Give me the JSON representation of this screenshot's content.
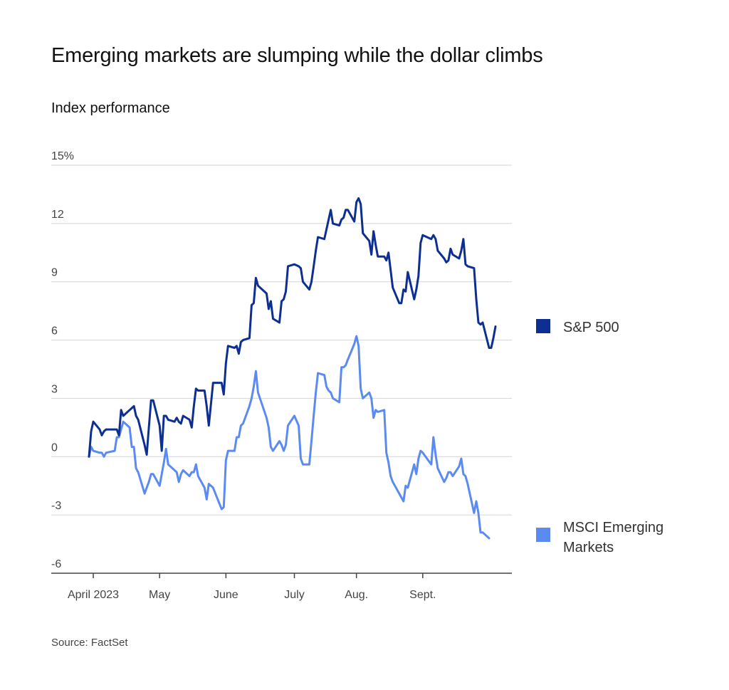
{
  "title": "Emerging markets are slumping while the dollar climbs",
  "subtitle": "Index performance",
  "source": "Source: FactSet",
  "colors": {
    "sp500": "#0d2f91",
    "msci": "#5b8af0",
    "grid": "#d4d4d4",
    "axis": "#444444"
  },
  "chart_data": {
    "type": "line",
    "title": "Emerging markets are slumping while the dollar climbs",
    "subtitle": "Index performance",
    "xlabel": "",
    "ylabel": "",
    "ylim": [
      -6,
      15
    ],
    "y_ticks": [
      15,
      12,
      9,
      6,
      3,
      0,
      -3,
      -6
    ],
    "y_tick_labels": [
      "15%",
      "12",
      "9",
      "6",
      "3",
      "0",
      "-3",
      "-6"
    ],
    "x_ticks": [
      {
        "label": "April 2023",
        "date": "2023-03-31"
      },
      {
        "label": "May",
        "date": "2023-05-01"
      },
      {
        "label": "June",
        "date": "2023-06-01"
      },
      {
        "label": "July",
        "date": "2023-07-03"
      },
      {
        "label": "Aug.",
        "date": "2023-08-01"
      },
      {
        "label": "Sept.",
        "date": "2023-09-01"
      }
    ],
    "grid": true,
    "legend": "right",
    "series": [
      {
        "name": "S&P 500",
        "color": "#0d2f91",
        "points": [
          [
            "2023-03-29",
            0.0
          ],
          [
            "2023-03-30",
            1.3
          ],
          [
            "2023-03-31",
            1.8
          ],
          [
            "2023-04-03",
            1.4
          ],
          [
            "2023-04-04",
            1.1
          ],
          [
            "2023-04-05",
            1.3
          ],
          [
            "2023-04-06",
            1.4
          ],
          [
            "2023-04-10",
            1.4
          ],
          [
            "2023-04-11",
            1.4
          ],
          [
            "2023-04-12",
            1.1
          ],
          [
            "2023-04-13",
            2.4
          ],
          [
            "2023-04-14",
            2.1
          ],
          [
            "2023-04-17",
            2.4
          ],
          [
            "2023-04-18",
            2.5
          ],
          [
            "2023-04-19",
            2.6
          ],
          [
            "2023-04-20",
            2.1
          ],
          [
            "2023-04-21",
            1.9
          ],
          [
            "2023-04-24",
            0.6
          ],
          [
            "2023-04-25",
            0.1
          ],
          [
            "2023-04-26",
            1.5
          ],
          [
            "2023-04-27",
            2.9
          ],
          [
            "2023-04-28",
            2.9
          ],
          [
            "2023-05-01",
            1.6
          ],
          [
            "2023-05-02",
            0.3
          ],
          [
            "2023-05-03",
            2.1
          ],
          [
            "2023-05-04",
            2.1
          ],
          [
            "2023-05-05",
            1.9
          ],
          [
            "2023-05-08",
            1.8
          ],
          [
            "2023-05-09",
            2.0
          ],
          [
            "2023-05-10",
            1.8
          ],
          [
            "2023-05-11",
            1.7
          ],
          [
            "2023-05-12",
            2.1
          ],
          [
            "2023-05-15",
            1.9
          ],
          [
            "2023-05-16",
            1.5
          ],
          [
            "2023-05-17",
            2.6
          ],
          [
            "2023-05-18",
            3.5
          ],
          [
            "2023-05-19",
            3.4
          ],
          [
            "2023-05-22",
            3.4
          ],
          [
            "2023-05-23",
            2.6
          ],
          [
            "2023-05-24",
            1.6
          ],
          [
            "2023-05-25",
            2.7
          ],
          [
            "2023-05-26",
            3.8
          ],
          [
            "2023-05-30",
            3.8
          ],
          [
            "2023-05-31",
            3.2
          ],
          [
            "2023-06-01",
            4.8
          ],
          [
            "2023-06-02",
            5.7
          ],
          [
            "2023-06-05",
            5.6
          ],
          [
            "2023-06-06",
            5.7
          ],
          [
            "2023-06-07",
            5.3
          ],
          [
            "2023-06-08",
            5.9
          ],
          [
            "2023-06-09",
            6.0
          ],
          [
            "2023-06-12",
            6.1
          ],
          [
            "2023-06-13",
            7.8
          ],
          [
            "2023-06-14",
            7.9
          ],
          [
            "2023-06-15",
            9.2
          ],
          [
            "2023-06-16",
            8.8
          ],
          [
            "2023-06-20",
            8.4
          ],
          [
            "2023-06-21",
            7.6
          ],
          [
            "2023-06-22",
            8.0
          ],
          [
            "2023-06-23",
            7.1
          ],
          [
            "2023-06-26",
            6.9
          ],
          [
            "2023-06-27",
            8.0
          ],
          [
            "2023-06-28",
            8.1
          ],
          [
            "2023-06-29",
            8.5
          ],
          [
            "2023-06-30",
            9.8
          ],
          [
            "2023-07-03",
            9.9
          ],
          [
            "2023-07-05",
            9.8
          ],
          [
            "2023-07-06",
            9.7
          ],
          [
            "2023-07-07",
            9.0
          ],
          [
            "2023-07-10",
            8.6
          ],
          [
            "2023-07-11",
            9.0
          ],
          [
            "2023-07-12",
            9.8
          ],
          [
            "2023-07-13",
            10.6
          ],
          [
            "2023-07-14",
            11.3
          ],
          [
            "2023-07-17",
            11.2
          ],
          [
            "2023-07-18",
            11.7
          ],
          [
            "2023-07-19",
            12.2
          ],
          [
            "2023-07-20",
            12.7
          ],
          [
            "2023-07-21",
            12.0
          ],
          [
            "2023-07-24",
            11.9
          ],
          [
            "2023-07-25",
            12.2
          ],
          [
            "2023-07-26",
            12.3
          ],
          [
            "2023-07-27",
            12.7
          ],
          [
            "2023-07-28",
            12.7
          ],
          [
            "2023-07-31",
            12.1
          ],
          [
            "2023-08-01",
            13.1
          ],
          [
            "2023-08-02",
            13.3
          ],
          [
            "2023-08-03",
            13.0
          ],
          [
            "2023-08-04",
            11.5
          ],
          [
            "2023-08-07",
            11.1
          ],
          [
            "2023-08-08",
            10.4
          ],
          [
            "2023-08-09",
            11.6
          ],
          [
            "2023-08-10",
            10.9
          ],
          [
            "2023-08-11",
            10.3
          ],
          [
            "2023-08-14",
            10.3
          ],
          [
            "2023-08-15",
            10.1
          ],
          [
            "2023-08-16",
            10.5
          ],
          [
            "2023-08-17",
            9.6
          ],
          [
            "2023-08-18",
            8.7
          ],
          [
            "2023-08-21",
            7.9
          ],
          [
            "2023-08-22",
            7.9
          ],
          [
            "2023-08-23",
            8.6
          ],
          [
            "2023-08-24",
            8.5
          ],
          [
            "2023-08-25",
            9.5
          ],
          [
            "2023-08-28",
            8.1
          ],
          [
            "2023-08-29",
            8.6
          ],
          [
            "2023-08-30",
            9.3
          ],
          [
            "2023-08-31",
            11.0
          ],
          [
            "2023-09-01",
            11.4
          ],
          [
            "2023-09-05",
            11.2
          ],
          [
            "2023-09-06",
            11.4
          ],
          [
            "2023-09-07",
            11.2
          ],
          [
            "2023-09-08",
            10.6
          ],
          [
            "2023-09-11",
            10.2
          ],
          [
            "2023-09-12",
            10.0
          ],
          [
            "2023-09-13",
            10.1
          ],
          [
            "2023-09-14",
            10.7
          ],
          [
            "2023-09-15",
            10.4
          ],
          [
            "2023-09-18",
            10.2
          ],
          [
            "2023-09-19",
            10.6
          ],
          [
            "2023-09-20",
            11.2
          ],
          [
            "2023-09-21",
            9.9
          ],
          [
            "2023-09-22",
            9.8
          ],
          [
            "2023-09-25",
            9.7
          ],
          [
            "2023-09-26",
            8.1
          ],
          [
            "2023-09-27",
            6.9
          ],
          [
            "2023-09-28",
            6.8
          ],
          [
            "2023-09-29",
            6.9
          ],
          [
            "2023-10-02",
            5.6
          ],
          [
            "2023-10-03",
            5.6
          ],
          [
            "2023-10-04",
            6.1
          ],
          [
            "2023-10-05",
            6.7
          ]
        ]
      },
      {
        "name": "MSCI Emerging Markets",
        "color": "#5b8af0",
        "points": [
          [
            "2023-03-29",
            0.0
          ],
          [
            "2023-03-30",
            0.5
          ],
          [
            "2023-03-31",
            0.3
          ],
          [
            "2023-04-03",
            0.2
          ],
          [
            "2023-04-04",
            0.2
          ],
          [
            "2023-04-05",
            0.0
          ],
          [
            "2023-04-06",
            0.2
          ],
          [
            "2023-04-10",
            0.3
          ],
          [
            "2023-04-11",
            1.0
          ],
          [
            "2023-04-12",
            1.0
          ],
          [
            "2023-04-13",
            1.4
          ],
          [
            "2023-04-14",
            1.8
          ],
          [
            "2023-04-17",
            1.5
          ],
          [
            "2023-04-18",
            0.5
          ],
          [
            "2023-04-19",
            0.5
          ],
          [
            "2023-04-20",
            -0.6
          ],
          [
            "2023-04-21",
            -0.8
          ],
          [
            "2023-04-24",
            -1.9
          ],
          [
            "2023-04-25",
            -1.6
          ],
          [
            "2023-04-26",
            -1.3
          ],
          [
            "2023-04-27",
            -0.9
          ],
          [
            "2023-04-28",
            -0.9
          ],
          [
            "2023-05-01",
            -1.5
          ],
          [
            "2023-05-02",
            -0.9
          ],
          [
            "2023-05-03",
            -0.3
          ],
          [
            "2023-05-04",
            0.4
          ],
          [
            "2023-05-05",
            -0.4
          ],
          [
            "2023-05-08",
            -0.7
          ],
          [
            "2023-05-09",
            -0.8
          ],
          [
            "2023-05-10",
            -1.3
          ],
          [
            "2023-05-11",
            -0.9
          ],
          [
            "2023-05-12",
            -0.7
          ],
          [
            "2023-05-15",
            -1.0
          ],
          [
            "2023-05-16",
            -0.8
          ],
          [
            "2023-05-17",
            -0.8
          ],
          [
            "2023-05-18",
            -0.4
          ],
          [
            "2023-05-19",
            -1.0
          ],
          [
            "2023-05-22",
            -1.6
          ],
          [
            "2023-05-23",
            -2.2
          ],
          [
            "2023-05-24",
            -1.4
          ],
          [
            "2023-05-25",
            -1.5
          ],
          [
            "2023-05-26",
            -1.6
          ],
          [
            "2023-05-30",
            -2.7
          ],
          [
            "2023-05-31",
            -2.6
          ],
          [
            "2023-06-01",
            -0.2
          ],
          [
            "2023-06-02",
            0.3
          ],
          [
            "2023-06-05",
            0.3
          ],
          [
            "2023-06-06",
            1.0
          ],
          [
            "2023-06-07",
            1.0
          ],
          [
            "2023-06-08",
            1.6
          ],
          [
            "2023-06-09",
            1.7
          ],
          [
            "2023-06-12",
            2.6
          ],
          [
            "2023-06-13",
            3.0
          ],
          [
            "2023-06-14",
            3.6
          ],
          [
            "2023-06-15",
            4.4
          ],
          [
            "2023-06-16",
            3.3
          ],
          [
            "2023-06-20",
            2.0
          ],
          [
            "2023-06-21",
            1.5
          ],
          [
            "2023-06-22",
            0.5
          ],
          [
            "2023-06-23",
            0.3
          ],
          [
            "2023-06-26",
            0.8
          ],
          [
            "2023-06-27",
            0.6
          ],
          [
            "2023-06-28",
            0.3
          ],
          [
            "2023-06-29",
            0.6
          ],
          [
            "2023-06-30",
            1.6
          ],
          [
            "2023-07-03",
            2.1
          ],
          [
            "2023-07-05",
            1.6
          ],
          [
            "2023-07-06",
            -0.1
          ],
          [
            "2023-07-07",
            -0.4
          ],
          [
            "2023-07-10",
            -0.4
          ],
          [
            "2023-07-11",
            0.8
          ],
          [
            "2023-07-12",
            2.1
          ],
          [
            "2023-07-13",
            3.3
          ],
          [
            "2023-07-14",
            4.3
          ],
          [
            "2023-07-17",
            4.2
          ],
          [
            "2023-07-18",
            3.6
          ],
          [
            "2023-07-19",
            3.4
          ],
          [
            "2023-07-20",
            3.3
          ],
          [
            "2023-07-21",
            3.0
          ],
          [
            "2023-07-24",
            2.8
          ],
          [
            "2023-07-25",
            4.6
          ],
          [
            "2023-07-26",
            4.6
          ],
          [
            "2023-07-27",
            4.7
          ],
          [
            "2023-07-28",
            5.0
          ],
          [
            "2023-07-31",
            5.8
          ],
          [
            "2023-08-01",
            6.2
          ],
          [
            "2023-08-02",
            5.7
          ],
          [
            "2023-08-03",
            3.5
          ],
          [
            "2023-08-04",
            3.0
          ],
          [
            "2023-08-07",
            3.3
          ],
          [
            "2023-08-08",
            3.0
          ],
          [
            "2023-08-09",
            2.0
          ],
          [
            "2023-08-10",
            2.4
          ],
          [
            "2023-08-11",
            2.3
          ],
          [
            "2023-08-14",
            2.4
          ],
          [
            "2023-08-15",
            0.2
          ],
          [
            "2023-08-16",
            -0.3
          ],
          [
            "2023-08-17",
            -1.0
          ],
          [
            "2023-08-18",
            -1.3
          ],
          [
            "2023-08-21",
            -1.9
          ],
          [
            "2023-08-22",
            -2.1
          ],
          [
            "2023-08-23",
            -2.3
          ],
          [
            "2023-08-24",
            -1.5
          ],
          [
            "2023-08-25",
            -1.6
          ],
          [
            "2023-08-28",
            -0.4
          ],
          [
            "2023-08-29",
            -0.9
          ],
          [
            "2023-08-30",
            -0.1
          ],
          [
            "2023-08-31",
            0.3
          ],
          [
            "2023-09-01",
            0.2
          ],
          [
            "2023-09-05",
            -0.4
          ],
          [
            "2023-09-06",
            1.0
          ],
          [
            "2023-09-07",
            0.1
          ],
          [
            "2023-09-08",
            -0.6
          ],
          [
            "2023-09-11",
            -1.3
          ],
          [
            "2023-09-12",
            -1.1
          ],
          [
            "2023-09-13",
            -0.8
          ],
          [
            "2023-09-14",
            -0.8
          ],
          [
            "2023-09-15",
            -1.0
          ],
          [
            "2023-09-18",
            -0.5
          ],
          [
            "2023-09-19",
            -0.1
          ],
          [
            "2023-09-20",
            -0.9
          ],
          [
            "2023-09-21",
            -1.0
          ],
          [
            "2023-09-22",
            -1.4
          ],
          [
            "2023-09-25",
            -2.9
          ],
          [
            "2023-09-26",
            -2.3
          ],
          [
            "2023-09-27",
            -2.9
          ],
          [
            "2023-09-28",
            -3.9
          ],
          [
            "2023-09-29",
            -3.9
          ],
          [
            "2023-10-02",
            -4.2
          ]
        ]
      }
    ]
  }
}
